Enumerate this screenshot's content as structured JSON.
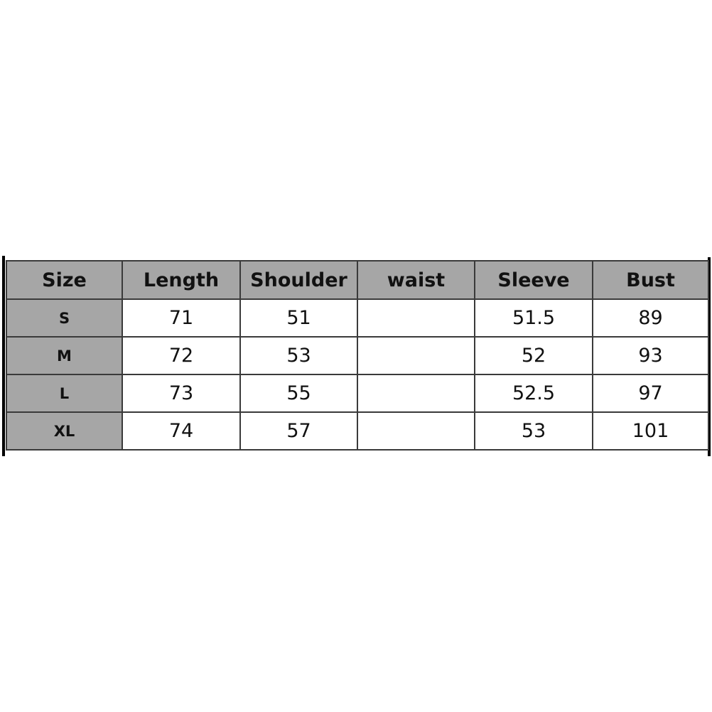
{
  "table": {
    "headers": [
      "Size",
      "Length",
      "Shoulder",
      "waist",
      "Sleeve",
      "Bust"
    ],
    "rows": [
      [
        "S",
        "71",
        "51",
        "",
        "51.5",
        "89"
      ],
      [
        "M",
        "72",
        "53",
        "",
        "52",
        "93"
      ],
      [
        "L",
        "73",
        "55",
        "",
        "52.5",
        "97"
      ],
      [
        "XL",
        "74",
        "57",
        "",
        "53",
        "101"
      ]
    ]
  },
  "colors": {
    "header_bg": "#a6a6a6",
    "border": "#3a3a3a"
  }
}
